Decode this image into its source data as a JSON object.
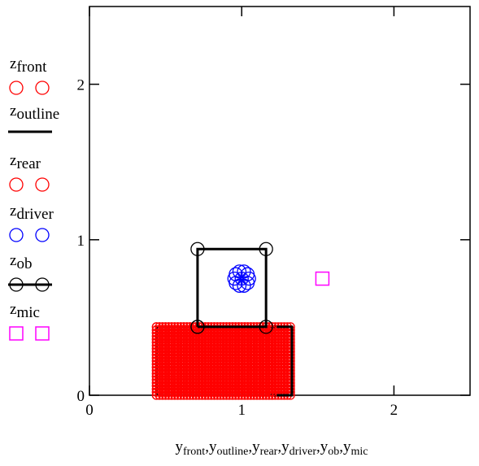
{
  "chart_data": {
    "type": "scatter",
    "xlim": [
      0,
      2.5
    ],
    "ylim": [
      0,
      2.5
    ],
    "x_ticks": [
      0,
      1,
      2
    ],
    "y_ticks": [
      0,
      1,
      2
    ],
    "x_tick_labels": [
      "0",
      "1",
      "2"
    ],
    "y_tick_labels": [
      "0",
      "1",
      "2"
    ],
    "grid": false,
    "legend_position": "left",
    "xlabel_parts": [
      {
        "base": "y",
        "sub": "front"
      },
      {
        "base": "y",
        "sub": "outline"
      },
      {
        "base": "y",
        "sub": "rear"
      },
      {
        "base": "y",
        "sub": "driver"
      },
      {
        "base": "y",
        "sub": "ob"
      },
      {
        "base": "y",
        "sub": "mic"
      }
    ],
    "xlabel_separator": ",",
    "series": [
      {
        "name_base": "z",
        "name_sub": "front",
        "marker": "circle",
        "color": "#ff0000",
        "line": false,
        "fill_region": {
          "x": [
            0.44,
            1.33
          ],
          "y": [
            0,
            0.44
          ]
        },
        "grid_step": 0.02
      },
      {
        "name_base": "z",
        "name_sub": "outline",
        "marker": "none",
        "color": "#000000",
        "line": true,
        "x": [
          0.44,
          1.33,
          1.33,
          0.44,
          0.44
        ],
        "y": [
          0,
          0,
          0.44,
          0.44,
          0
        ]
      },
      {
        "name_base": "z",
        "name_sub": "rear",
        "marker": "circle",
        "color": "#ff0000",
        "line": false,
        "fill_region": {
          "x": [
            0.44,
            1.2
          ],
          "y": [
            0,
            0.44
          ]
        },
        "grid_step": 0.02
      },
      {
        "name_base": "z",
        "name_sub": "driver",
        "marker": "circle",
        "color": "#0000ff",
        "line": false,
        "center": [
          1.0,
          0.75
        ],
        "radius": 0.08,
        "rings": 10
      },
      {
        "name_base": "z",
        "name_sub": "ob",
        "marker": "circle",
        "color": "#000000",
        "line": true,
        "x": [
          0.71,
          1.16,
          1.16,
          0.71,
          0.71
        ],
        "y": [
          0.44,
          0.44,
          0.94,
          0.94,
          0.44
        ]
      },
      {
        "name_base": "z",
        "name_sub": "mic",
        "marker": "square",
        "color": "#ff00ff",
        "line": false,
        "x": [
          1.53
        ],
        "y": [
          0.75
        ]
      }
    ]
  }
}
